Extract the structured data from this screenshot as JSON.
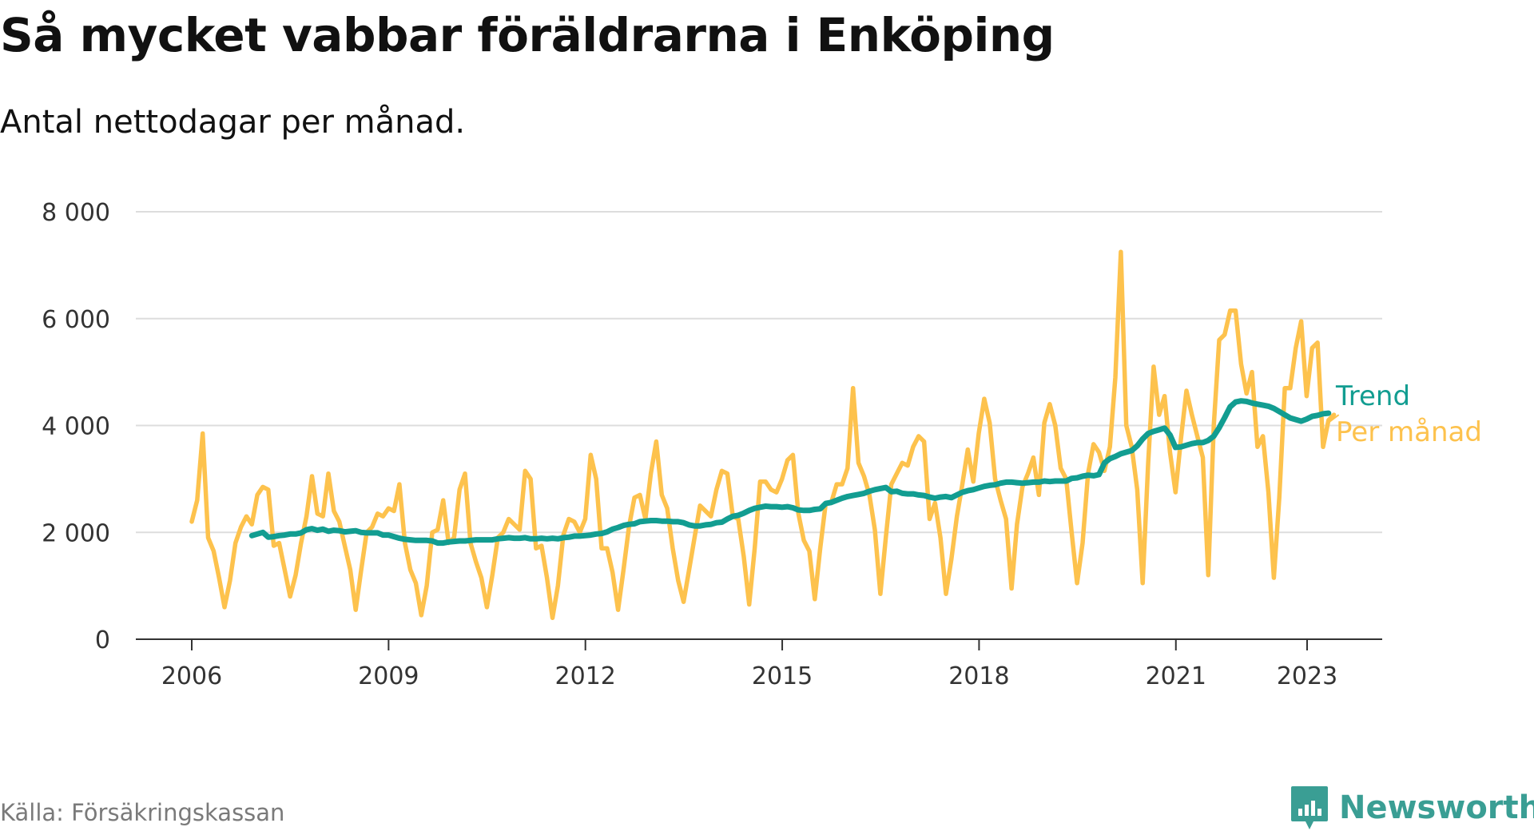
{
  "title": "Så mycket vabbar föräldrarna i Enköping",
  "subtitle": "Antal nettodagar per månad.",
  "source": "Källa: Försäkringskassan",
  "brand": {
    "name": "Newsworthy",
    "icon": "newsworthy-logo-icon",
    "color": "#3a9e94"
  },
  "chart_data": {
    "type": "line",
    "title": "Så mycket vabbar föräldrarna i Enköping",
    "subtitle": "Antal nettodagar per månad.",
    "xlabel": "",
    "ylabel": "",
    "xlim": [
      2006,
      2023.5
    ],
    "ylim": [
      0,
      8000
    ],
    "xticks": [
      2006,
      2009,
      2012,
      2015,
      2018,
      2021,
      2023
    ],
    "xtick_labels": [
      "2006",
      "2009",
      "2012",
      "2015",
      "2018",
      "2021",
      "2023"
    ],
    "yticks": [
      0,
      2000,
      4000,
      6000,
      8000
    ],
    "ytick_labels": [
      "0",
      "2 000",
      "4 000",
      "6 000",
      "8 000"
    ],
    "grid": "horizontal",
    "legend": "direct labels at right end of lines",
    "series": [
      {
        "name": "Per månad",
        "color": "#fdc24d",
        "x_start": 2006.0,
        "x_step": 0.0833,
        "values": [
          2200,
          2600,
          3850,
          1900,
          1650,
          1150,
          600,
          1100,
          1800,
          2100,
          2300,
          2150,
          2700,
          2850,
          2800,
          1750,
          1800,
          1300,
          800,
          1200,
          1800,
          2300,
          3050,
          2350,
          2300,
          3100,
          2400,
          2200,
          1750,
          1300,
          550,
          1300,
          2000,
          2100,
          2350,
          2300,
          2450,
          2400,
          2900,
          1800,
          1300,
          1050,
          450,
          1000,
          2000,
          2050,
          2600,
          1800,
          1900,
          2800,
          3100,
          1800,
          1450,
          1150,
          600,
          1200,
          1900,
          2000,
          2250,
          2150,
          2050,
          3150,
          3000,
          1700,
          1750,
          1150,
          400,
          1000,
          1950,
          2250,
          2200,
          2000,
          2250,
          3450,
          3000,
          1700,
          1700,
          1250,
          550,
          1300,
          2100,
          2650,
          2700,
          2250,
          3100,
          3700,
          2700,
          2450,
          1700,
          1100,
          700,
          1300,
          1900,
          2500,
          2400,
          2300,
          2800,
          3150,
          3100,
          2300,
          2250,
          1550,
          650,
          1700,
          2950,
          2950,
          2800,
          2750,
          3000,
          3350,
          3450,
          2350,
          1850,
          1650,
          750,
          1700,
          2550,
          2550,
          2900,
          2900,
          3200,
          4700,
          3300,
          3050,
          2700,
          2050,
          850,
          1900,
          2900,
          3100,
          3300,
          3250,
          3600,
          3800,
          3700,
          2250,
          2550,
          1900,
          850,
          1500,
          2300,
          2900,
          3550,
          2950,
          3850,
          4500,
          4050,
          3000,
          2600,
          2250,
          950,
          2150,
          2850,
          3100,
          3400,
          2700,
          4050,
          4400,
          4000,
          3200,
          3000,
          2000,
          1050,
          1800,
          3100,
          3650,
          3500,
          3150,
          3600,
          4900,
          7250,
          4000,
          3600,
          2800,
          1050,
          3300,
          5100,
          4200,
          4550,
          3500,
          2750,
          3750,
          4650,
          4200,
          3800,
          3400,
          1200,
          4000,
          5600,
          5700,
          6150,
          6150,
          5150,
          4600,
          5000,
          3600,
          3800,
          2750,
          1150,
          2650,
          4700,
          4700,
          5450,
          5950,
          4550,
          5450,
          5550,
          3600,
          4100,
          4200
        ]
      },
      {
        "name": "Trend",
        "color": "#129d91",
        "x_start": 2006.9167,
        "x_step": 0.0833,
        "values": [
          1940,
          1970,
          2000,
          1910,
          1920,
          1940,
          1950,
          1970,
          1970,
          1990,
          2050,
          2070,
          2040,
          2060,
          2020,
          2040,
          2030,
          2010,
          2020,
          2030,
          2000,
          1990,
          1990,
          1990,
          1950,
          1950,
          1920,
          1890,
          1870,
          1860,
          1850,
          1850,
          1850,
          1840,
          1800,
          1800,
          1820,
          1830,
          1840,
          1840,
          1850,
          1860,
          1860,
          1860,
          1860,
          1880,
          1890,
          1900,
          1890,
          1890,
          1900,
          1880,
          1880,
          1890,
          1880,
          1890,
          1880,
          1900,
          1910,
          1930,
          1930,
          1940,
          1950,
          1970,
          1980,
          2010,
          2060,
          2090,
          2130,
          2150,
          2160,
          2200,
          2210,
          2220,
          2220,
          2210,
          2210,
          2200,
          2200,
          2180,
          2140,
          2120,
          2120,
          2140,
          2150,
          2180,
          2190,
          2250,
          2300,
          2320,
          2360,
          2410,
          2450,
          2470,
          2490,
          2480,
          2480,
          2470,
          2480,
          2460,
          2420,
          2410,
          2410,
          2430,
          2440,
          2540,
          2560,
          2600,
          2640,
          2670,
          2690,
          2710,
          2730,
          2770,
          2800,
          2820,
          2840,
          2760,
          2770,
          2730,
          2720,
          2720,
          2700,
          2690,
          2660,
          2640,
          2660,
          2670,
          2650,
          2700,
          2750,
          2780,
          2800,
          2830,
          2860,
          2880,
          2890,
          2920,
          2940,
          2940,
          2930,
          2920,
          2930,
          2940,
          2940,
          2960,
          2950,
          2960,
          2960,
          2960,
          3010,
          3020,
          3050,
          3070,
          3060,
          3080,
          3300,
          3380,
          3420,
          3470,
          3500,
          3530,
          3620,
          3750,
          3850,
          3890,
          3920,
          3950,
          3820,
          3590,
          3600,
          3630,
          3660,
          3680,
          3680,
          3720,
          3800,
          3960,
          4150,
          4350,
          4440,
          4460,
          4450,
          4420,
          4400,
          4380,
          4360,
          4320,
          4260,
          4200,
          4140,
          4110,
          4080,
          4120,
          4170,
          4190,
          4220,
          4230
        ]
      }
    ]
  }
}
